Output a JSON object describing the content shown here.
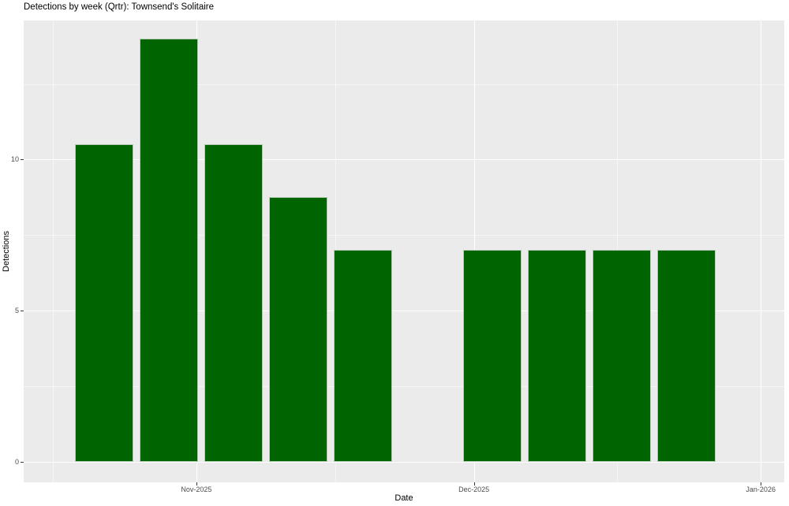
{
  "chart_data": {
    "type": "bar",
    "title": "Detections by week (Qrtr): Townsend's Solitaire",
    "xlabel": "Date",
    "ylabel": "Detections",
    "x": [
      "2025-10-22",
      "2025-10-29",
      "2025-11-05",
      "2025-11-12",
      "2025-11-19",
      "2025-12-03",
      "2025-12-10",
      "2025-12-17",
      "2025-12-24"
    ],
    "values": [
      10.5,
      14,
      10.5,
      8.75,
      7,
      7,
      7,
      7,
      7
    ],
    "bar_width_days": 6.3,
    "x_domain": [
      "2025-10-13T08:00:00Z",
      "2026-01-03T13:00:00Z"
    ],
    "x_major_ticks": [
      {
        "date": "2025-11-01",
        "label": "Nov-2025"
      },
      {
        "date": "2025-12-01",
        "label": "Dec-2025"
      },
      {
        "date": "2026-01-01",
        "label": "Jan-2026"
      }
    ],
    "x_minor_ticks": [
      "2025-10-16T12:00:00Z",
      "2025-11-16T00:00:00Z",
      "2025-12-16T12:00:00Z"
    ],
    "ylim": [
      -0.68,
      14.6
    ],
    "y_major_ticks": [
      0,
      5,
      10
    ],
    "y_minor_ticks": [
      2.5,
      7.5,
      12.5
    ],
    "grid": true,
    "legend": "none",
    "colors": {
      "bar_fill": "#006400",
      "bar_border": "#b5cab5",
      "panel_bg": "#EBEBEB",
      "grid_major": "#FFFFFF",
      "grid_minor": "rgba(255,255,255,0.55)",
      "tick_mark": "#333333",
      "tick_label": "#4d4d4d",
      "figure_bg": "#ffffff"
    }
  }
}
